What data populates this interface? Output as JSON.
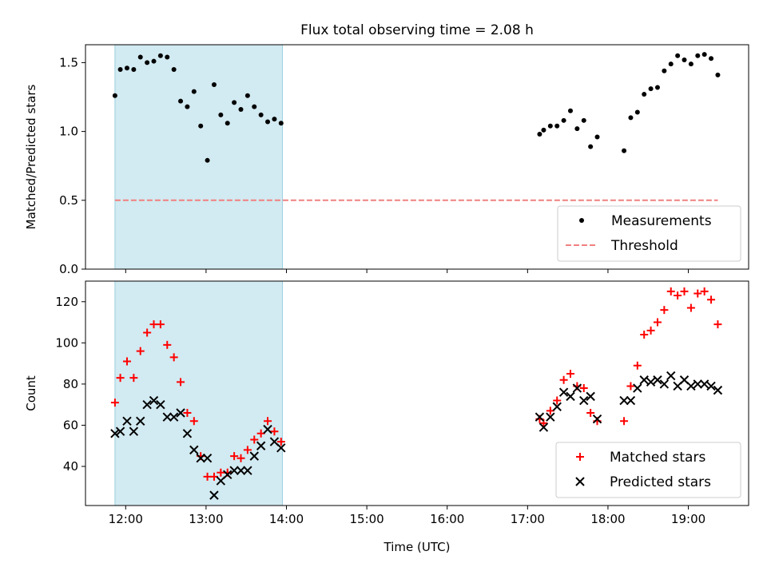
{
  "title": "Flux total observing time = 2.08 h",
  "chart_data": [
    {
      "type": "scatter",
      "ylabel": "Matched/Predicted stars",
      "ylim": [
        0,
        1.63
      ],
      "yticks": [
        0.0,
        0.5,
        1.0,
        1.5
      ],
      "ytick_labels": [
        "0.0",
        "0.5",
        "1.0",
        "1.5"
      ],
      "xlim": [
        "11:30",
        "19:45"
      ],
      "xticks": [
        "12:00",
        "13:00",
        "14:00",
        "15:00",
        "16:00",
        "17:00",
        "18:00",
        "19:00"
      ],
      "shaded_span": [
        "11:52",
        "13:57"
      ],
      "shade_color": "#add8e6",
      "legend_position": "lower right",
      "series": [
        {
          "name": "Measurements",
          "marker": "dot",
          "color": "#000000",
          "points": [
            [
              "11:52",
              1.26
            ],
            [
              "11:56",
              1.45
            ],
            [
              "12:01",
              1.46
            ],
            [
              "12:06",
              1.45
            ],
            [
              "12:11",
              1.54
            ],
            [
              "12:16",
              1.5
            ],
            [
              "12:21",
              1.51
            ],
            [
              "12:26",
              1.55
            ],
            [
              "12:31",
              1.54
            ],
            [
              "12:36",
              1.45
            ],
            [
              "12:41",
              1.22
            ],
            [
              "12:46",
              1.18
            ],
            [
              "12:51",
              1.29
            ],
            [
              "12:56",
              1.04
            ],
            [
              "13:01",
              0.79
            ],
            [
              "13:06",
              1.34
            ],
            [
              "13:11",
              1.12
            ],
            [
              "13:16",
              1.06
            ],
            [
              "13:21",
              1.21
            ],
            [
              "13:26",
              1.16
            ],
            [
              "13:31",
              1.26
            ],
            [
              "13:36",
              1.18
            ],
            [
              "13:41",
              1.12
            ],
            [
              "13:46",
              1.07
            ],
            [
              "13:51",
              1.09
            ],
            [
              "13:56",
              1.06
            ],
            [
              "17:09",
              0.98
            ],
            [
              "17:12",
              1.01
            ],
            [
              "17:17",
              1.04
            ],
            [
              "17:22",
              1.04
            ],
            [
              "17:27",
              1.08
            ],
            [
              "17:32",
              1.15
            ],
            [
              "17:37",
              1.02
            ],
            [
              "17:42",
              1.08
            ],
            [
              "17:47",
              0.89
            ],
            [
              "17:52",
              0.96
            ],
            [
              "18:12",
              0.86
            ],
            [
              "18:17",
              1.1
            ],
            [
              "18:22",
              1.14
            ],
            [
              "18:27",
              1.27
            ],
            [
              "18:32",
              1.31
            ],
            [
              "18:37",
              1.32
            ],
            [
              "18:42",
              1.44
            ],
            [
              "18:47",
              1.49
            ],
            [
              "18:52",
              1.55
            ],
            [
              "18:57",
              1.52
            ],
            [
              "19:02",
              1.49
            ],
            [
              "19:07",
              1.55
            ],
            [
              "19:12",
              1.56
            ],
            [
              "19:17",
              1.53
            ],
            [
              "19:22",
              1.41
            ]
          ]
        },
        {
          "name": "Threshold",
          "marker": "dashed-line",
          "color": "#f08080",
          "points": [
            [
              "11:52",
              0.5
            ],
            [
              "19:22",
              0.5
            ]
          ]
        }
      ]
    },
    {
      "type": "scatter",
      "xlabel": "Time (UTC)",
      "ylabel": "Count",
      "ylim": [
        21,
        130
      ],
      "yticks": [
        40,
        60,
        80,
        100,
        120
      ],
      "ytick_labels": [
        "40",
        "60",
        "80",
        "100",
        "120"
      ],
      "xlim": [
        "11:30",
        "19:45"
      ],
      "xticks": [
        "12:00",
        "13:00",
        "14:00",
        "15:00",
        "16:00",
        "17:00",
        "18:00",
        "19:00"
      ],
      "xtick_labels": [
        "12:00",
        "13:00",
        "14:00",
        "15:00",
        "16:00",
        "17:00",
        "18:00",
        "19:00"
      ],
      "shaded_span": [
        "11:52",
        "13:57"
      ],
      "shade_color": "#add8e6",
      "legend_position": "lower right",
      "series": [
        {
          "name": "Matched stars",
          "marker": "plus",
          "color": "#ff0000",
          "points": [
            [
              "11:52",
              71
            ],
            [
              "11:56",
              83
            ],
            [
              "12:01",
              91
            ],
            [
              "12:06",
              83
            ],
            [
              "12:11",
              96
            ],
            [
              "12:16",
              105
            ],
            [
              "12:21",
              109
            ],
            [
              "12:26",
              109
            ],
            [
              "12:31",
              99
            ],
            [
              "12:36",
              93
            ],
            [
              "12:41",
              81
            ],
            [
              "12:46",
              66
            ],
            [
              "12:51",
              62
            ],
            [
              "12:56",
              45
            ],
            [
              "13:01",
              35
            ],
            [
              "13:06",
              35
            ],
            [
              "13:11",
              37
            ],
            [
              "13:16",
              37
            ],
            [
              "13:21",
              45
            ],
            [
              "13:26",
              44
            ],
            [
              "13:31",
              48
            ],
            [
              "13:36",
              53
            ],
            [
              "13:41",
              56
            ],
            [
              "13:46",
              62
            ],
            [
              "13:51",
              57
            ],
            [
              "13:56",
              52
            ],
            [
              "17:09",
              63
            ],
            [
              "17:12",
              61
            ],
            [
              "17:17",
              67
            ],
            [
              "17:22",
              72
            ],
            [
              "17:27",
              82
            ],
            [
              "17:32",
              85
            ],
            [
              "17:37",
              79
            ],
            [
              "17:42",
              78
            ],
            [
              "17:47",
              66
            ],
            [
              "17:52",
              62
            ],
            [
              "18:12",
              62
            ],
            [
              "18:17",
              79
            ],
            [
              "18:22",
              89
            ],
            [
              "18:27",
              104
            ],
            [
              "18:32",
              106
            ],
            [
              "18:37",
              110
            ],
            [
              "18:42",
              116
            ],
            [
              "18:47",
              125
            ],
            [
              "18:52",
              123
            ],
            [
              "18:57",
              125
            ],
            [
              "19:02",
              117
            ],
            [
              "19:07",
              124
            ],
            [
              "19:12",
              125
            ],
            [
              "19:17",
              121
            ],
            [
              "19:22",
              109
            ]
          ]
        },
        {
          "name": "Predicted stars",
          "marker": "x",
          "color": "#000000",
          "points": [
            [
              "11:52",
              56
            ],
            [
              "11:56",
              57
            ],
            [
              "12:01",
              62
            ],
            [
              "12:06",
              57
            ],
            [
              "12:11",
              62
            ],
            [
              "12:16",
              70
            ],
            [
              "12:21",
              72
            ],
            [
              "12:26",
              70
            ],
            [
              "12:31",
              64
            ],
            [
              "12:36",
              64
            ],
            [
              "12:41",
              66
            ],
            [
              "12:46",
              56
            ],
            [
              "12:51",
              48
            ],
            [
              "12:56",
              44
            ],
            [
              "13:01",
              44
            ],
            [
              "13:06",
              26
            ],
            [
              "13:11",
              33
            ],
            [
              "13:16",
              36
            ],
            [
              "13:21",
              38
            ],
            [
              "13:26",
              38
            ],
            [
              "13:31",
              38
            ],
            [
              "13:36",
              45
            ],
            [
              "13:41",
              50
            ],
            [
              "13:46",
              58
            ],
            [
              "13:51",
              52
            ],
            [
              "13:56",
              49
            ],
            [
              "17:09",
              64
            ],
            [
              "17:12",
              59
            ],
            [
              "17:17",
              64
            ],
            [
              "17:22",
              69
            ],
            [
              "17:27",
              76
            ],
            [
              "17:32",
              74
            ],
            [
              "17:37",
              78
            ],
            [
              "17:42",
              72
            ],
            [
              "17:47",
              74
            ],
            [
              "17:52",
              63
            ],
            [
              "18:12",
              72
            ],
            [
              "18:17",
              72
            ],
            [
              "18:22",
              78
            ],
            [
              "18:27",
              82
            ],
            [
              "18:32",
              81
            ],
            [
              "18:37",
              82
            ],
            [
              "18:42",
              80
            ],
            [
              "18:47",
              84
            ],
            [
              "18:52",
              79
            ],
            [
              "18:57",
              82
            ],
            [
              "19:02",
              79
            ],
            [
              "19:07",
              80
            ],
            [
              "19:12",
              80
            ],
            [
              "19:17",
              79
            ],
            [
              "19:22",
              77
            ]
          ]
        }
      ]
    }
  ]
}
